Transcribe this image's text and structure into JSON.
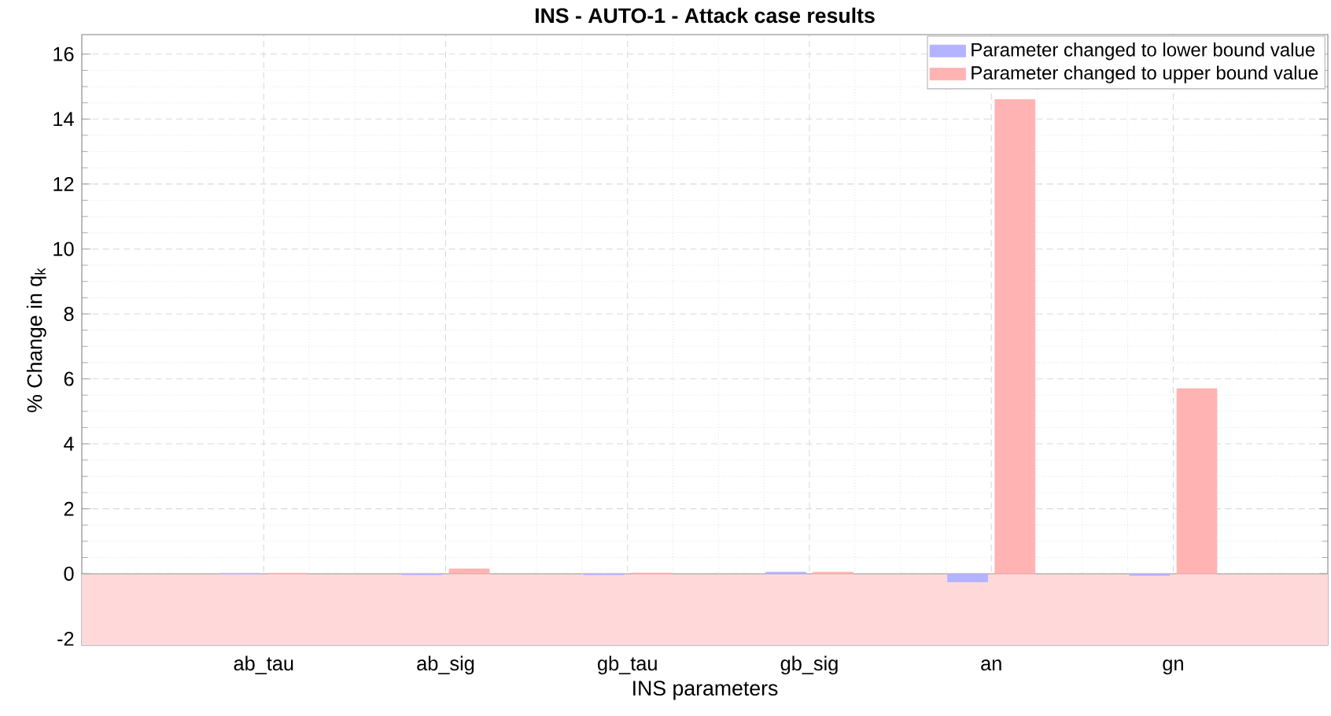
{
  "chart_data": {
    "type": "bar",
    "title": "INS - AUTO-1 - Attack case results",
    "xlabel": "INS parameters",
    "ylabel": "% Change in q$_{k}$",
    "categories": [
      "ab_tau",
      "ab_sig",
      "gb_tau",
      "gb_sig",
      "an",
      "gn"
    ],
    "series": [
      {
        "name": "Parameter changed to lower bound value",
        "color": "#b3b3ff",
        "values": [
          0,
          -0.03,
          -0.03,
          0.05,
          -0.25,
          -0.05
        ]
      },
      {
        "name": "Parameter changed to upper bound value",
        "color": "#ffb3b3",
        "values": [
          0.01,
          0.15,
          0.02,
          0.05,
          14.6,
          5.7
        ]
      }
    ],
    "ylim": [
      -2.2,
      16.6
    ],
    "yticks": [
      -2,
      0,
      2,
      4,
      6,
      8,
      10,
      12,
      14,
      16
    ],
    "bands": [
      {
        "axis": "y",
        "from": -2.2,
        "to": 0,
        "color": "#ffd9d9"
      }
    ],
    "grid": true,
    "legend": "top right"
  }
}
